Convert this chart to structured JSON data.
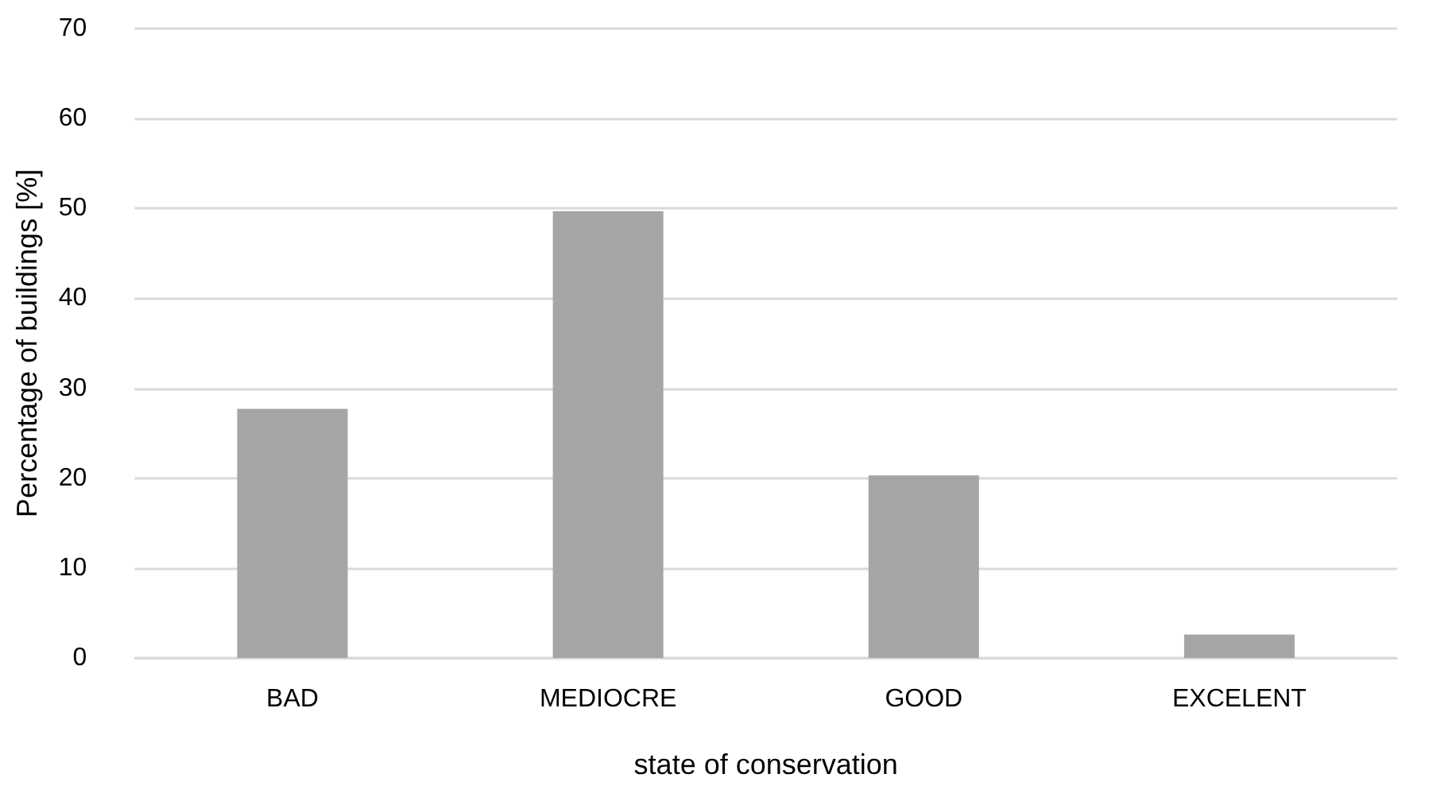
{
  "chart_data": {
    "type": "bar",
    "xlabel": "state of conservation",
    "ylabel": "Percentage of buildings [%]",
    "categories": [
      "BAD",
      "MEDIOCRE",
      "GOOD",
      "EXCELENT"
    ],
    "values": [
      27.7,
      49.7,
      20.3,
      2.6
    ],
    "color": "#a5a5a5",
    "ylim": [
      0,
      70
    ],
    "yticks": [
      0,
      10,
      20,
      30,
      40,
      50,
      60,
      70
    ],
    "grid": "y"
  }
}
